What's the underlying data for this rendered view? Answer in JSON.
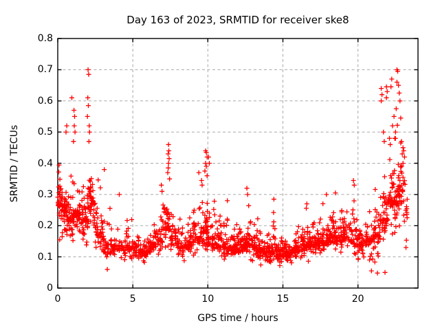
{
  "chart_data": {
    "type": "scatter",
    "title": "Day 163 of 2023, SRMTID for receiver ske8",
    "xlabel": "GPS time / hours",
    "ylabel": "SRMTID / TECUs",
    "xlim": [
      0,
      24
    ],
    "ylim": [
      0,
      0.8
    ],
    "xticks": [
      0,
      5,
      10,
      15,
      20
    ],
    "yticks": [
      0,
      0.1,
      0.2,
      0.3,
      0.4,
      0.5,
      0.6,
      0.7,
      0.8
    ],
    "grid": {
      "show": true,
      "style": "dashed",
      "color": "#a8a8a8"
    },
    "axis_color": "#000000",
    "background": "#ffffff",
    "legend": "none",
    "series": [
      {
        "name": "SRMTID",
        "marker": "plus",
        "marker_size": 7,
        "color": "#ff0000",
        "seed": 20230163,
        "density_bins_format": [
          "t_start_h",
          "t_end_h",
          "count",
          "y_min",
          "y_mode",
          "y_max"
        ],
        "density_bins": [
          [
            0.0,
            0.3,
            40,
            0.1,
            0.27,
            0.46
          ],
          [
            0.3,
            0.6,
            34,
            0.12,
            0.25,
            0.44
          ],
          [
            0.6,
            1.0,
            40,
            0.12,
            0.22,
            0.4
          ],
          [
            1.0,
            1.5,
            46,
            0.12,
            0.24,
            0.42
          ],
          [
            1.5,
            2.0,
            44,
            0.1,
            0.22,
            0.46
          ],
          [
            2.0,
            2.5,
            50,
            0.1,
            0.27,
            0.45
          ],
          [
            2.5,
            3.0,
            40,
            0.08,
            0.18,
            0.38
          ],
          [
            3.0,
            3.5,
            30,
            0.06,
            0.14,
            0.34
          ],
          [
            3.5,
            4.0,
            28,
            0.08,
            0.13,
            0.25
          ],
          [
            4.0,
            4.5,
            28,
            0.08,
            0.13,
            0.28
          ],
          [
            4.5,
            5.0,
            30,
            0.07,
            0.13,
            0.27
          ],
          [
            5.0,
            5.5,
            32,
            0.07,
            0.12,
            0.22
          ],
          [
            5.5,
            6.0,
            35,
            0.06,
            0.12,
            0.2
          ],
          [
            6.0,
            6.5,
            35,
            0.08,
            0.13,
            0.22
          ],
          [
            6.5,
            7.0,
            35,
            0.09,
            0.15,
            0.3
          ],
          [
            7.0,
            7.5,
            40,
            0.12,
            0.2,
            0.35
          ],
          [
            7.5,
            8.0,
            34,
            0.1,
            0.16,
            0.3
          ],
          [
            8.0,
            8.5,
            32,
            0.07,
            0.13,
            0.25
          ],
          [
            8.5,
            9.0,
            32,
            0.09,
            0.14,
            0.26
          ],
          [
            9.0,
            9.5,
            35,
            0.1,
            0.16,
            0.32
          ],
          [
            9.5,
            10.0,
            46,
            0.1,
            0.18,
            0.34
          ],
          [
            10.0,
            10.5,
            40,
            0.09,
            0.16,
            0.33
          ],
          [
            10.5,
            11.0,
            35,
            0.08,
            0.14,
            0.27
          ],
          [
            11.0,
            11.5,
            40,
            0.07,
            0.13,
            0.27
          ],
          [
            11.5,
            12.0,
            40,
            0.06,
            0.13,
            0.25
          ],
          [
            12.0,
            12.5,
            42,
            0.07,
            0.14,
            0.26
          ],
          [
            12.5,
            13.0,
            42,
            0.07,
            0.14,
            0.3
          ],
          [
            13.0,
            13.5,
            42,
            0.07,
            0.13,
            0.24
          ],
          [
            13.5,
            14.0,
            42,
            0.06,
            0.12,
            0.22
          ],
          [
            14.0,
            14.5,
            42,
            0.06,
            0.12,
            0.27
          ],
          [
            14.5,
            15.0,
            40,
            0.05,
            0.11,
            0.2
          ],
          [
            15.0,
            15.5,
            40,
            0.06,
            0.11,
            0.2
          ],
          [
            15.5,
            16.0,
            40,
            0.07,
            0.12,
            0.22
          ],
          [
            16.0,
            16.5,
            40,
            0.07,
            0.13,
            0.25
          ],
          [
            16.5,
            17.0,
            40,
            0.08,
            0.14,
            0.27
          ],
          [
            17.0,
            17.5,
            40,
            0.08,
            0.14,
            0.28
          ],
          [
            17.5,
            18.0,
            40,
            0.08,
            0.15,
            0.3
          ],
          [
            18.0,
            18.5,
            40,
            0.09,
            0.16,
            0.3
          ],
          [
            18.5,
            19.0,
            38,
            0.09,
            0.16,
            0.31
          ],
          [
            19.0,
            19.5,
            36,
            0.1,
            0.17,
            0.33
          ],
          [
            19.5,
            20.0,
            34,
            0.08,
            0.16,
            0.33
          ],
          [
            20.0,
            20.5,
            34,
            0.06,
            0.14,
            0.3
          ],
          [
            20.5,
            21.0,
            36,
            0.05,
            0.15,
            0.33
          ],
          [
            21.0,
            21.5,
            40,
            0.05,
            0.17,
            0.37
          ],
          [
            21.5,
            22.0,
            46,
            0.1,
            0.22,
            0.48
          ],
          [
            22.0,
            22.5,
            48,
            0.12,
            0.28,
            0.54
          ],
          [
            22.5,
            23.0,
            48,
            0.12,
            0.3,
            0.55
          ],
          [
            23.0,
            23.3,
            14,
            0.12,
            0.25,
            0.42
          ]
        ],
        "outlier_points": [
          [
            0.55,
            0.5
          ],
          [
            0.6,
            0.52
          ],
          [
            0.94,
            0.61
          ],
          [
            1.08,
            0.57
          ],
          [
            1.12,
            0.55
          ],
          [
            1.1,
            0.52
          ],
          [
            1.15,
            0.5
          ],
          [
            1.05,
            0.47
          ],
          [
            2.02,
            0.7
          ],
          [
            2.06,
            0.685
          ],
          [
            2.0,
            0.61
          ],
          [
            2.04,
            0.585
          ],
          [
            1.98,
            0.55
          ],
          [
            2.1,
            0.52
          ],
          [
            2.12,
            0.5
          ],
          [
            2.08,
            0.47
          ],
          [
            3.1,
            0.38
          ],
          [
            3.3,
            0.06
          ],
          [
            4.1,
            0.3
          ],
          [
            6.9,
            0.33
          ],
          [
            6.95,
            0.31
          ],
          [
            7.38,
            0.46
          ],
          [
            7.4,
            0.44
          ],
          [
            7.35,
            0.43
          ],
          [
            7.42,
            0.415
          ],
          [
            7.38,
            0.4
          ],
          [
            7.36,
            0.385
          ],
          [
            7.33,
            0.37
          ],
          [
            7.45,
            0.35
          ],
          [
            9.4,
            0.37
          ],
          [
            9.58,
            0.345
          ],
          [
            9.62,
            0.33
          ],
          [
            9.85,
            0.44
          ],
          [
            9.9,
            0.435
          ],
          [
            9.95,
            0.42
          ],
          [
            9.85,
            0.4
          ],
          [
            9.9,
            0.39
          ],
          [
            9.8,
            0.375
          ],
          [
            9.95,
            0.36
          ],
          [
            10.05,
            0.42
          ],
          [
            10.1,
            0.4
          ],
          [
            11.3,
            0.28
          ],
          [
            12.6,
            0.32
          ],
          [
            12.65,
            0.3
          ],
          [
            14.4,
            0.285
          ],
          [
            16.6,
            0.27
          ],
          [
            17.9,
            0.3
          ],
          [
            18.5,
            0.305
          ],
          [
            19.7,
            0.345
          ],
          [
            19.75,
            0.33
          ],
          [
            20.9,
            0.055
          ],
          [
            21.3,
            0.048
          ],
          [
            21.8,
            0.05
          ],
          [
            21.55,
            0.64
          ],
          [
            21.6,
            0.62
          ],
          [
            21.55,
            0.6
          ],
          [
            21.7,
            0.5
          ],
          [
            21.75,
            0.47
          ],
          [
            21.9,
            0.645
          ],
          [
            21.95,
            0.63
          ],
          [
            21.9,
            0.61
          ],
          [
            22.2,
            0.645
          ],
          [
            22.25,
            0.67
          ],
          [
            22.1,
            0.48
          ],
          [
            22.15,
            0.46
          ],
          [
            22.6,
            0.7
          ],
          [
            22.65,
            0.695
          ],
          [
            22.6,
            0.66
          ],
          [
            22.7,
            0.65
          ],
          [
            22.75,
            0.625
          ],
          [
            22.8,
            0.6
          ],
          [
            22.55,
            0.575
          ],
          [
            22.4,
            0.55
          ],
          [
            22.85,
            0.545
          ],
          [
            22.3,
            0.52
          ],
          [
            22.5,
            0.5
          ],
          [
            22.45,
            0.48
          ],
          [
            22.9,
            0.47
          ],
          [
            23.0,
            0.45
          ],
          [
            23.05,
            0.44
          ],
          [
            22.95,
            0.43
          ],
          [
            23.1,
            0.42
          ],
          [
            23.0,
            0.4
          ],
          [
            23.2,
            0.13
          ]
        ]
      }
    ]
  }
}
